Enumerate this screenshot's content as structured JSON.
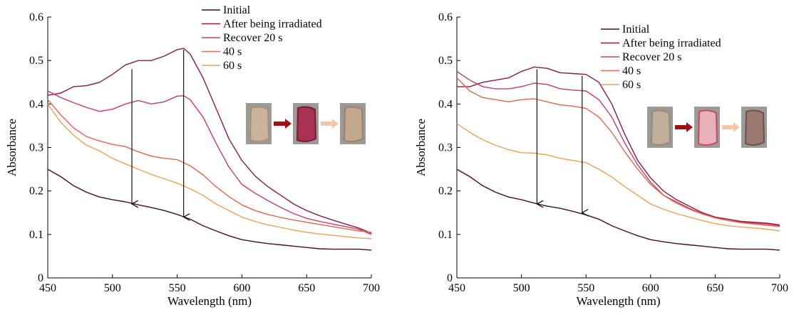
{
  "chart_data": [
    {
      "type": "line",
      "title": "",
      "xlabel": "Wavelength (nm)",
      "ylabel": "Absorbance",
      "xlim": [
        450,
        700
      ],
      "ylim": [
        0,
        0.6
      ],
      "xticks": [
        "450",
        "500",
        "550",
        "600",
        "650",
        "700"
      ],
      "yticks": [
        "0",
        "0.1",
        "0.2",
        "0.3",
        "0.4",
        "0.5",
        "0.6"
      ],
      "legend_position": "top-right",
      "series": [
        {
          "name": "Initial",
          "color": "#4a0a24",
          "x": [
            450,
            460,
            470,
            480,
            490,
            500,
            510,
            520,
            530,
            540,
            550,
            560,
            570,
            580,
            590,
            600,
            610,
            620,
            630,
            640,
            650,
            660,
            670,
            680,
            690,
            700
          ],
          "y": [
            0.25,
            0.233,
            0.212,
            0.197,
            0.186,
            0.18,
            0.175,
            0.168,
            0.162,
            0.155,
            0.146,
            0.135,
            0.12,
            0.108,
            0.097,
            0.088,
            0.083,
            0.079,
            0.076,
            0.073,
            0.07,
            0.067,
            0.066,
            0.066,
            0.066,
            0.064
          ]
        },
        {
          "name": "After being irradiated",
          "color": "#8f1747",
          "x": [
            450,
            460,
            470,
            480,
            490,
            500,
            510,
            520,
            530,
            540,
            550,
            555,
            560,
            570,
            580,
            590,
            600,
            610,
            620,
            630,
            640,
            650,
            660,
            670,
            680,
            690,
            700
          ],
          "y": [
            0.42,
            0.425,
            0.44,
            0.442,
            0.45,
            0.468,
            0.49,
            0.5,
            0.5,
            0.51,
            0.525,
            0.528,
            0.515,
            0.46,
            0.39,
            0.32,
            0.27,
            0.235,
            0.21,
            0.19,
            0.17,
            0.155,
            0.143,
            0.133,
            0.124,
            0.115,
            0.103
          ]
        },
        {
          "name": "Recover 20 s",
          "color": "#cc3a63",
          "x": [
            450,
            460,
            470,
            480,
            490,
            500,
            510,
            520,
            530,
            540,
            550,
            555,
            560,
            570,
            580,
            590,
            600,
            610,
            620,
            630,
            640,
            650,
            660,
            670,
            680,
            690,
            700
          ],
          "y": [
            0.43,
            0.415,
            0.403,
            0.392,
            0.383,
            0.388,
            0.4,
            0.408,
            0.4,
            0.405,
            0.418,
            0.419,
            0.41,
            0.37,
            0.31,
            0.255,
            0.215,
            0.195,
            0.178,
            0.162,
            0.148,
            0.137,
            0.13,
            0.124,
            0.118,
            0.112,
            0.1
          ]
        },
        {
          "name": "40 s",
          "color": "#e86448",
          "x": [
            450,
            460,
            470,
            480,
            490,
            500,
            510,
            520,
            530,
            540,
            550,
            560,
            570,
            580,
            590,
            600,
            610,
            620,
            630,
            640,
            650,
            660,
            670,
            680,
            690,
            700
          ],
          "y": [
            0.41,
            0.375,
            0.345,
            0.325,
            0.315,
            0.307,
            0.302,
            0.29,
            0.28,
            0.275,
            0.272,
            0.258,
            0.237,
            0.21,
            0.187,
            0.168,
            0.155,
            0.146,
            0.139,
            0.133,
            0.128,
            0.123,
            0.118,
            0.113,
            0.108,
            0.105
          ]
        },
        {
          "name": "60 s",
          "color": "#f0a050",
          "x": [
            450,
            460,
            470,
            480,
            490,
            500,
            510,
            520,
            530,
            540,
            550,
            560,
            570,
            580,
            590,
            600,
            610,
            620,
            630,
            640,
            650,
            660,
            670,
            680,
            690,
            700
          ],
          "y": [
            0.4,
            0.358,
            0.328,
            0.305,
            0.292,
            0.275,
            0.262,
            0.25,
            0.238,
            0.228,
            0.218,
            0.205,
            0.19,
            0.17,
            0.155,
            0.14,
            0.13,
            0.122,
            0.116,
            0.11,
            0.105,
            0.101,
            0.098,
            0.095,
            0.092,
            0.09
          ]
        }
      ],
      "arrows": [
        {
          "x": 515,
          "y_from": 0.48,
          "y_to": 0.17
        },
        {
          "x": 555,
          "y_from": 0.525,
          "y_to": 0.14
        }
      ],
      "inset": [
        {
          "label": "initial-sample-photo",
          "fill": "#c9b49b",
          "fill_dark": "#a89078"
        },
        {
          "label": "irradiated-sample-photo",
          "fill": "#a83250",
          "fill_dark": "#7a1a35"
        },
        {
          "label": "recovered-sample-photo",
          "fill": "#c2a88c",
          "fill_dark": "#9c8068"
        }
      ],
      "inset_arrows": [
        {
          "color": "#a01010"
        },
        {
          "color": "#f2c8a8"
        }
      ]
    },
    {
      "type": "line",
      "title": "",
      "xlabel": "Wavelength (nm)",
      "ylabel": "Absorbance",
      "xlim": [
        450,
        700
      ],
      "ylim": [
        0,
        0.6
      ],
      "xticks": [
        "450",
        "500",
        "550",
        "600",
        "650",
        "700"
      ],
      "yticks": [
        "0",
        "0.1",
        "0.2",
        "0.3",
        "0.4",
        "0.5",
        "0.6"
      ],
      "legend_position": "top-right",
      "series": [
        {
          "name": "Initial",
          "color": "#4a0a24",
          "x": [
            450,
            460,
            470,
            480,
            490,
            500,
            510,
            520,
            530,
            540,
            550,
            560,
            570,
            580,
            590,
            600,
            610,
            620,
            630,
            640,
            650,
            660,
            670,
            680,
            690,
            700
          ],
          "y": [
            0.25,
            0.233,
            0.212,
            0.197,
            0.186,
            0.18,
            0.172,
            0.165,
            0.16,
            0.153,
            0.145,
            0.135,
            0.12,
            0.108,
            0.097,
            0.088,
            0.083,
            0.079,
            0.076,
            0.073,
            0.07,
            0.067,
            0.066,
            0.066,
            0.066,
            0.064
          ]
        },
        {
          "name": "After being irradiated",
          "color": "#8f1747",
          "x": [
            450,
            460,
            470,
            480,
            490,
            500,
            510,
            520,
            530,
            540,
            550,
            560,
            570,
            580,
            590,
            600,
            610,
            620,
            630,
            640,
            650,
            660,
            670,
            680,
            690,
            700
          ],
          "y": [
            0.44,
            0.44,
            0.45,
            0.455,
            0.46,
            0.475,
            0.485,
            0.482,
            0.472,
            0.47,
            0.468,
            0.45,
            0.4,
            0.33,
            0.27,
            0.23,
            0.2,
            0.18,
            0.165,
            0.15,
            0.14,
            0.135,
            0.13,
            0.128,
            0.126,
            0.122
          ]
        },
        {
          "name": "Recover 20 s",
          "color": "#cc3a63",
          "x": [
            450,
            460,
            470,
            480,
            490,
            500,
            510,
            520,
            530,
            540,
            550,
            560,
            570,
            580,
            590,
            600,
            610,
            620,
            630,
            640,
            650,
            660,
            670,
            680,
            690,
            700
          ],
          "y": [
            0.475,
            0.455,
            0.44,
            0.435,
            0.435,
            0.44,
            0.448,
            0.445,
            0.435,
            0.432,
            0.43,
            0.41,
            0.37,
            0.31,
            0.26,
            0.22,
            0.19,
            0.175,
            0.16,
            0.148,
            0.138,
            0.132,
            0.128,
            0.126,
            0.124,
            0.12
          ]
        },
        {
          "name": "40 s",
          "color": "#e86448",
          "x": [
            450,
            460,
            470,
            480,
            490,
            500,
            510,
            520,
            530,
            540,
            550,
            560,
            570,
            580,
            590,
            600,
            610,
            620,
            630,
            640,
            650,
            660,
            670,
            680,
            690,
            700
          ],
          "y": [
            0.46,
            0.43,
            0.415,
            0.41,
            0.405,
            0.41,
            0.412,
            0.405,
            0.398,
            0.395,
            0.39,
            0.37,
            0.335,
            0.29,
            0.25,
            0.215,
            0.19,
            0.172,
            0.158,
            0.147,
            0.138,
            0.132,
            0.127,
            0.124,
            0.121,
            0.118
          ]
        },
        {
          "name": "60 s",
          "color": "#f0a050",
          "x": [
            450,
            460,
            470,
            480,
            490,
            500,
            510,
            520,
            530,
            540,
            550,
            560,
            570,
            580,
            590,
            600,
            610,
            620,
            630,
            640,
            650,
            660,
            670,
            680,
            690,
            700
          ],
          "y": [
            0.355,
            0.335,
            0.318,
            0.305,
            0.295,
            0.288,
            0.287,
            0.283,
            0.275,
            0.27,
            0.265,
            0.25,
            0.232,
            0.21,
            0.19,
            0.17,
            0.158,
            0.148,
            0.14,
            0.132,
            0.125,
            0.12,
            0.117,
            0.115,
            0.112,
            0.108
          ]
        }
      ],
      "arrows": [
        {
          "x": 512,
          "y_from": 0.48,
          "y_to": 0.17
        },
        {
          "x": 547,
          "y_from": 0.465,
          "y_to": 0.15
        }
      ],
      "inset": [
        {
          "label": "initial-sample-photo",
          "fill": "#bfae9a",
          "fill_dark": "#9a8874"
        },
        {
          "label": "irradiated-sample-photo",
          "fill": "#e8b0b8",
          "fill_dark": "#c84860"
        },
        {
          "label": "recovered-sample-photo",
          "fill": "#9c7870",
          "fill_dark": "#6e5048"
        }
      ],
      "inset_arrows": [
        {
          "color": "#a01010"
        },
        {
          "color": "#f2c8a8"
        }
      ]
    }
  ]
}
